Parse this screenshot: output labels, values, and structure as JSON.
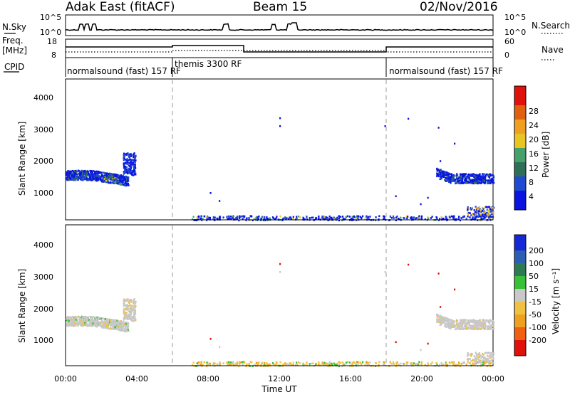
{
  "header": {
    "radar": "Adak East (fitACF)",
    "beam": "Beam 15",
    "date": "02/Nov/2016"
  },
  "summary": {
    "nsky_label": "N.Sky",
    "nsky_ticks": [
      "10^5",
      "10^0"
    ],
    "nsearch_label": "N.Search",
    "nsearch_ticks": [
      "10^5",
      "10^0"
    ],
    "freq_label_1": "Freq.",
    "freq_label_2": "[MHz]",
    "freq_ticks": [
      "18",
      "8"
    ],
    "nave_label": "Nave",
    "nave_ticks": [
      "60",
      "0"
    ],
    "cpid_label": "CPID",
    "cpid_segments": [
      {
        "start": 0,
        "end": 6,
        "text": "normalsound (fast) 157 RF"
      },
      {
        "start": 6,
        "end": 18,
        "text": "themis 3300 RF"
      },
      {
        "start": 18,
        "end": 24,
        "text": "normalsound (fast) 157 RF"
      }
    ]
  },
  "power_panel": {
    "ylabel": "Slant Range [km]",
    "yticks": [
      "1000",
      "2000",
      "3000",
      "4000"
    ],
    "colorbar_label": "Power [dB]",
    "colorbar_ticks": [
      "4",
      "8",
      "12",
      "16",
      "20",
      "24",
      "28"
    ],
    "colors": [
      "#0a14e0",
      "#1e4bd2",
      "#2f6f5a",
      "#45a06a",
      "#e8c520",
      "#f0a020",
      "#e06010",
      "#e0100a"
    ]
  },
  "velocity_panel": {
    "ylabel": "Slant Range [km]",
    "yticks": [
      "1000",
      "2000",
      "3000",
      "4000"
    ],
    "colorbar_label": "Velocity [m s⁻¹]",
    "colorbar_ticks": [
      "200",
      "100",
      "50",
      "15",
      "-15",
      "-50",
      "-100",
      "-200"
    ],
    "colors": [
      "#1428d8",
      "#2c5fb4",
      "#2e7a52",
      "#38c038",
      "#c8c8c8",
      "#f0c040",
      "#f0a020",
      "#f06010",
      "#e0100a"
    ]
  },
  "x_axis": {
    "label": "Time UT",
    "ticks": [
      "00:00",
      "04:00",
      "08:00",
      "12:00",
      "16:00",
      "20:00",
      "00:00"
    ]
  },
  "chart_data": {
    "type": "heatmap",
    "title": "Adak East (fitACF) Beam 15 02/Nov/2016",
    "xlabel": "Time UT",
    "ylabel": "Slant Range [km]",
    "xlim": [
      0,
      24
    ],
    "ylim": [
      180,
      4600
    ],
    "mode_changes_hours": [
      6,
      18
    ],
    "scatter_regions": [
      {
        "name": "early scatter band",
        "t_start": 0.0,
        "t_end": 3.5,
        "range_km": [
          1200,
          1900
        ],
        "power_db": [
          4,
          20
        ],
        "velocity": "-15 to 15"
      },
      {
        "name": "early upper echoes",
        "t_start": 3.2,
        "t_end": 3.9,
        "range_km": [
          1600,
          2300
        ],
        "power_db": [
          4,
          8
        ],
        "velocity": "-15 to 15"
      },
      {
        "name": "late scatter band",
        "t_start": 20.8,
        "t_end": 24.0,
        "range_km": [
          1300,
          1850
        ],
        "power_db": [
          4,
          12
        ],
        "velocity": "-15 to 15"
      },
      {
        "name": "near-range ground scatter",
        "t_start": 7.0,
        "t_end": 24.0,
        "range_km": [
          180,
          600
        ],
        "power_db": [
          4,
          24
        ],
        "velocity": "-50 to 50"
      }
    ],
    "nsky_spikes_hours": [
      0.9,
      1.2,
      1.6,
      9.0,
      11.7,
      12.6,
      12.9
    ]
  }
}
